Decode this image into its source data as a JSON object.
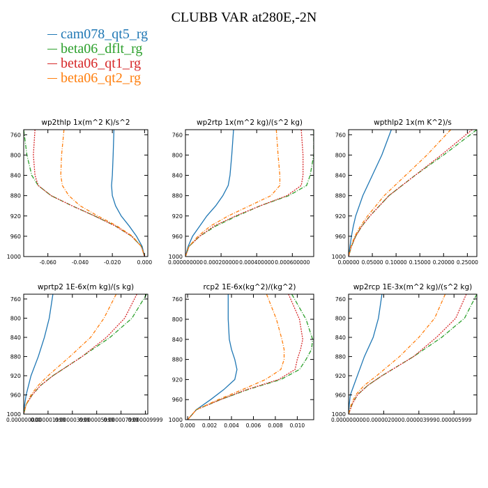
{
  "figure": {
    "title": "CLUBB VAR at280E,-2N"
  },
  "legend": [
    {
      "name": "cam078_qt5_rg",
      "color": "#1f77b4",
      "dash": ""
    },
    {
      "name": "beta06_dflt_rg",
      "color": "#2ca02c",
      "dash": "6 2 1 2"
    },
    {
      "name": "beta06_qt1_rg",
      "color": "#d62728",
      "dash": "2 1.5"
    },
    {
      "name": "beta06_qt2_rg",
      "color": "#ff7f0e",
      "dash": "5 2 1 2"
    }
  ],
  "chart_data": [
    {
      "type": "line",
      "title": "wp2thlp   1x(m^2 K)/s^2",
      "xlim": [
        -0.075,
        0.002
      ],
      "ylim": [
        1000,
        750
      ],
      "xticks": [
        -0.06,
        -0.04,
        -0.02,
        0.0
      ],
      "xtick_labels": [
        "-0.060",
        "-0.040",
        "-0.020",
        "0.000"
      ],
      "yticks": [
        760,
        800,
        840,
        880,
        920,
        960,
        1000
      ],
      "y": [
        750,
        800,
        840,
        860,
        880,
        900,
        920,
        940,
        960,
        980,
        1000
      ],
      "series": [
        {
          "name": "cam078_qt5_rg",
          "values": [
            -0.019,
            -0.0195,
            -0.02,
            -0.0205,
            -0.02,
            -0.018,
            -0.0145,
            -0.0095,
            -0.005,
            -0.0015,
            0.0
          ]
        },
        {
          "name": "beta06_dflt_rg",
          "values": [
            -0.075,
            -0.073,
            -0.07,
            -0.066,
            -0.058,
            -0.045,
            -0.031,
            -0.018,
            -0.008,
            -0.002,
            0.0
          ]
        },
        {
          "name": "beta06_qt1_rg",
          "values": [
            -0.068,
            -0.069,
            -0.068,
            -0.066,
            -0.058,
            -0.045,
            -0.031,
            -0.018,
            -0.008,
            -0.002,
            0.0
          ]
        },
        {
          "name": "beta06_qt2_rg",
          "values": [
            -0.05,
            -0.0515,
            -0.052,
            -0.051,
            -0.047,
            -0.04,
            -0.029,
            -0.017,
            -0.0075,
            -0.002,
            0.0
          ]
        }
      ]
    },
    {
      "type": "line",
      "title": "wp2rtp   1x(m^2 kg)/(s^2 kg)",
      "xlim": [
        0.0,
        0.00072
      ],
      "ylim": [
        1000,
        750
      ],
      "xticks": [
        0.0,
        0.0002,
        0.0004,
        0.0006
      ],
      "xtick_labels": [
        "0.000000000",
        "0.000200000",
        "0.000400000",
        "0.000600000"
      ],
      "yticks": [
        760,
        800,
        840,
        880,
        920,
        960,
        1000
      ],
      "y": [
        750,
        800,
        840,
        860,
        880,
        900,
        920,
        940,
        960,
        980,
        1000
      ],
      "series": [
        {
          "name": "cam078_qt5_rg",
          "values": [
            0.00027,
            0.00026,
            0.00025,
            0.00024,
            0.00021,
            0.00017,
            0.00012,
            8e-05,
            4e-05,
            1.5e-05,
            0.0
          ]
        },
        {
          "name": "beta06_dflt_rg",
          "values": [
            0.00072,
            0.00072,
            0.0007,
            0.00068,
            0.00058,
            0.00042,
            0.00029,
            0.00017,
            8e-05,
            2e-05,
            0.0
          ]
        },
        {
          "name": "beta06_qt1_rg",
          "values": [
            0.00065,
            0.00066,
            0.00066,
            0.00065,
            0.00057,
            0.00042,
            0.00028,
            0.00016,
            8e-05,
            2e-05,
            0.0
          ]
        },
        {
          "name": "beta06_qt2_rg",
          "values": [
            0.00051,
            0.00052,
            0.00053,
            0.00053,
            0.00048,
            0.00036,
            0.00024,
            0.00014,
            7e-05,
            2e-05,
            0.0
          ]
        }
      ]
    },
    {
      "type": "line",
      "title": "wpthlp2   1x(m K^2)/s",
      "xlim": [
        0.0,
        0.27
      ],
      "ylim": [
        1000,
        750
      ],
      "xticks": [
        0.0,
        0.05,
        0.1,
        0.15,
        0.2,
        0.25
      ],
      "xtick_labels": [
        "0.00000",
        "0.05000",
        "0.10000",
        "0.15000",
        "0.20000",
        "0.25000"
      ],
      "yticks": [
        760,
        800,
        840,
        880,
        920,
        960,
        1000
      ],
      "y": [
        750,
        800,
        840,
        880,
        920,
        940,
        960,
        980,
        1000
      ],
      "series": [
        {
          "name": "cam078_qt5_rg",
          "values": [
            0.09,
            0.07,
            0.05,
            0.03,
            0.015,
            0.01,
            0.006,
            0.003,
            0.0
          ]
        },
        {
          "name": "beta06_dflt_rg",
          "values": [
            0.27,
            0.2,
            0.14,
            0.085,
            0.045,
            0.028,
            0.015,
            0.006,
            0.0
          ]
        },
        {
          "name": "beta06_qt1_rg",
          "values": [
            0.26,
            0.195,
            0.14,
            0.085,
            0.045,
            0.028,
            0.015,
            0.006,
            0.0
          ]
        },
        {
          "name": "beta06_qt2_rg",
          "values": [
            0.215,
            0.165,
            0.12,
            0.075,
            0.04,
            0.025,
            0.013,
            0.005,
            0.0
          ]
        }
      ]
    },
    {
      "type": "line",
      "title": "wprtp2   1E-6x(m kg)/(s kg)",
      "xlim": [
        0.0,
        1.02e-05
      ],
      "ylim": [
        1000,
        750
      ],
      "xticks": [
        0.0,
        2e-06,
        4e-06,
        6e-06,
        8e-06,
        1e-05
      ],
      "xtick_labels": [
        "0.000000000",
        "0.000001999",
        "0.000003999",
        "0.000005999",
        "0.000007999",
        "0.000009999"
      ],
      "yticks": [
        760,
        800,
        840,
        880,
        920,
        960,
        1000
      ],
      "y": [
        750,
        800,
        840,
        880,
        920,
        940,
        960,
        980,
        1000
      ],
      "series": [
        {
          "name": "cam078_qt5_rg",
          "values": [
            2.4e-06,
            2.1e-06,
            1.7e-06,
            1.2e-06,
            6e-07,
            4e-07,
            2e-07,
            8e-08,
            0.0
          ]
        },
        {
          "name": "beta06_dflt_rg",
          "values": [
            1.01e-05,
            8.9e-06,
            7.1e-06,
            4.8e-06,
            2.4e-06,
            1.4e-06,
            7e-07,
            2e-07,
            0.0
          ]
        },
        {
          "name": "beta06_qt1_rg",
          "values": [
            9.3e-06,
            8.3e-06,
            6.8e-06,
            4.8e-06,
            2.4e-06,
            1.4e-06,
            7e-07,
            2e-07,
            0.0
          ]
        },
        {
          "name": "beta06_qt2_rg",
          "values": [
            7.6e-06,
            6.6e-06,
            5.5e-06,
            3.8e-06,
            2e-06,
            1.2e-06,
            6e-07,
            2e-07,
            0.0
          ]
        }
      ]
    },
    {
      "type": "line",
      "title": "rcp2   1E-6x(kg^2)/(kg^2)",
      "xlim": [
        -0.0002,
        0.0115
      ],
      "ylim": [
        1000,
        750
      ],
      "xticks": [
        0.0,
        0.002,
        0.004,
        0.006,
        0.008,
        0.01
      ],
      "xtick_labels": [
        "0.000",
        "0.002",
        "0.004",
        "0.006",
        "0.008",
        "0.010"
      ],
      "yticks": [
        760,
        800,
        840,
        880,
        920,
        960,
        1000
      ],
      "y": [
        750,
        800,
        840,
        860,
        880,
        900,
        920,
        940,
        960,
        980,
        1000
      ],
      "series": [
        {
          "name": "cam078_qt5_rg",
          "values": [
            0.0037,
            0.0037,
            0.0038,
            0.004,
            0.0043,
            0.0045,
            0.0043,
            0.0033,
            0.0021,
            0.0008,
            0.0
          ]
        },
        {
          "name": "beta06_dflt_rg",
          "values": [
            0.0095,
            0.0108,
            0.0114,
            0.0113,
            0.0108,
            0.0102,
            0.0085,
            0.0055,
            0.003,
            0.0008,
            0.0
          ]
        },
        {
          "name": "beta06_qt1_rg",
          "values": [
            0.0092,
            0.0102,
            0.0105,
            0.0103,
            0.01,
            0.0098,
            0.0083,
            0.0054,
            0.003,
            0.0008,
            0.0
          ]
        },
        {
          "name": "beta06_qt2_rg",
          "values": [
            0.0072,
            0.0081,
            0.0086,
            0.0088,
            0.0088,
            0.0085,
            0.0071,
            0.005,
            0.0028,
            0.0008,
            0.0
          ]
        }
      ]
    },
    {
      "type": "line",
      "title": "wp2rcp   1E-3x(m^2 kg)/(s^2 kg)",
      "xlim": [
        0.0,
        7.3e-06
      ],
      "ylim": [
        1000,
        750
      ],
      "xticks": [
        0.0,
        2e-06,
        4e-06,
        6e-06
      ],
      "xtick_labels": [
        "0.000000000",
        "0.000002000",
        "0.000003999",
        "0.000005999"
      ],
      "yticks": [
        760,
        800,
        840,
        880,
        920,
        960,
        1000
      ],
      "y": [
        750,
        800,
        840,
        880,
        920,
        940,
        960,
        980,
        1000
      ],
      "series": [
        {
          "name": "cam078_qt5_rg",
          "values": [
            1.9e-06,
            1.7e-06,
            1.4e-06,
            9e-07,
            5e-07,
            3e-07,
            1e-07,
            4e-08,
            0.0
          ]
        },
        {
          "name": "beta06_dflt_rg",
          "values": [
            7.3e-06,
            6.6e-06,
            5.3e-06,
            3.7e-06,
            1.9e-06,
            1.1e-06,
            5e-07,
            2e-07,
            0.0
          ]
        },
        {
          "name": "beta06_qt1_rg",
          "values": [
            6.7e-06,
            6.1e-06,
            5e-06,
            3.7e-06,
            1.9e-06,
            1.1e-06,
            5e-07,
            2e-07,
            0.0
          ]
        },
        {
          "name": "beta06_qt2_rg",
          "values": [
            5.5e-06,
            4.9e-06,
            4e-06,
            2.9e-06,
            1.6e-06,
            9e-07,
            4e-07,
            1.5e-07,
            0.0
          ]
        }
      ]
    }
  ]
}
